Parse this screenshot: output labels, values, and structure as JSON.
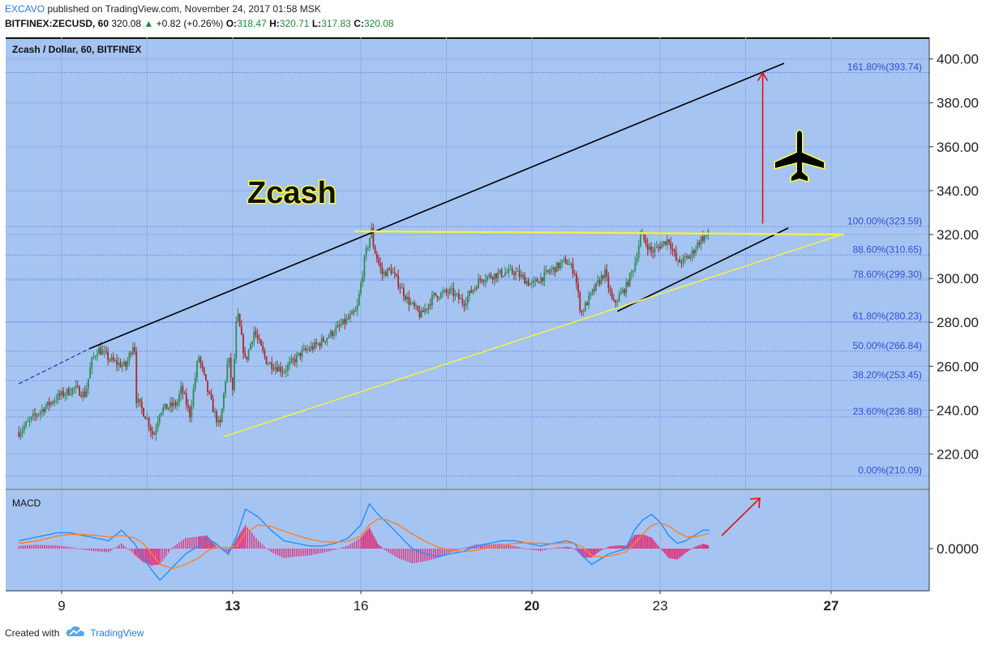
{
  "header": {
    "author": "EXCAVO",
    "published_text": " published on TradingView.com, November 24, 2017 01:58 MSK",
    "symbol": "BITFINEX:ZECUSD, 60",
    "last": "320.08",
    "change_arrow": "▲",
    "change": "+0.82 (+0.26%)",
    "o_label": "O:",
    "o_value": "318.47",
    "h_label": "H:",
    "h_value": "320.71",
    "l_label": "L:",
    "l_value": "317.83",
    "c_label": "C:",
    "c_value": "320.08"
  },
  "footer": {
    "created_with": "Created with",
    "brand": "TradingView",
    "icon": "tradingview-cloud-icon"
  },
  "colors": {
    "background": "#a6c4f2",
    "grid": "#8db0e6",
    "candle_up": "#2e8b57",
    "candle_down": "#a52a2a",
    "fib_line": "#4b68e0",
    "fib_text": "#2f4fd6",
    "channel": "#000000",
    "trendline": "#f0f04a",
    "target_arrow": "#e01010",
    "macd_line": "#1e90ff",
    "signal_line": "#ff7f27",
    "histogram": "#e0307a"
  },
  "chart_data": [
    {
      "type": "candlestick",
      "title": "Zcash / Dollar, 60, BITFINEX",
      "annotation_text": "Zcash",
      "icons": [
        "airplane-icon"
      ],
      "x_ticks": [
        "9",
        "13",
        "16",
        "20",
        "23",
        "27"
      ],
      "y_ticks": [
        "220.00",
        "240.00",
        "260.00",
        "280.00",
        "300.00",
        "320.00",
        "340.00",
        "360.00",
        "380.00",
        "400.00"
      ],
      "ylim": [
        203,
        409
      ],
      "last_price": 320.08,
      "fibonacci": [
        {
          "label": "0.00%(210.09)",
          "value": 210.09
        },
        {
          "label": "23.60%(236.88)",
          "value": 236.88
        },
        {
          "label": "38.20%(253.45)",
          "value": 253.45
        },
        {
          "label": "50.00%(266.84)",
          "value": 266.84
        },
        {
          "label": "61.80%(280.23)",
          "value": 280.23
        },
        {
          "label": "78.60%(299.30)",
          "value": 299.3
        },
        {
          "label": "88.60%(310.65)",
          "value": 310.65
        },
        {
          "label": "100.00%(323.59)",
          "value": 323.59
        },
        {
          "label": "161.80%(393.74)",
          "value": 393.74
        }
      ],
      "price_path": [
        {
          "d": 8.0,
          "p": 230
        },
        {
          "d": 8.4,
          "p": 238
        },
        {
          "d": 8.9,
          "p": 246
        },
        {
          "d": 9.3,
          "p": 250
        },
        {
          "d": 9.55,
          "p": 247
        },
        {
          "d": 9.7,
          "p": 262
        },
        {
          "d": 9.85,
          "p": 268
        },
        {
          "d": 10.2,
          "p": 262
        },
        {
          "d": 10.5,
          "p": 260
        },
        {
          "d": 10.7,
          "p": 272
        },
        {
          "d": 10.75,
          "p": 245
        },
        {
          "d": 11.0,
          "p": 236
        },
        {
          "d": 11.15,
          "p": 228
        },
        {
          "d": 11.3,
          "p": 240
        },
        {
          "d": 11.7,
          "p": 243
        },
        {
          "d": 11.8,
          "p": 250
        },
        {
          "d": 12.0,
          "p": 238
        },
        {
          "d": 12.2,
          "p": 265
        },
        {
          "d": 12.4,
          "p": 250
        },
        {
          "d": 12.55,
          "p": 240
        },
        {
          "d": 12.7,
          "p": 232
        },
        {
          "d": 12.9,
          "p": 265
        },
        {
          "d": 13.0,
          "p": 248
        },
        {
          "d": 13.1,
          "p": 285
        },
        {
          "d": 13.3,
          "p": 262
        },
        {
          "d": 13.5,
          "p": 276
        },
        {
          "d": 13.8,
          "p": 262
        },
        {
          "d": 14.2,
          "p": 258
        },
        {
          "d": 14.6,
          "p": 266
        },
        {
          "d": 15.0,
          "p": 270
        },
        {
          "d": 15.5,
          "p": 278
        },
        {
          "d": 15.9,
          "p": 285
        },
        {
          "d": 16.1,
          "p": 310
        },
        {
          "d": 16.25,
          "p": 322
        },
        {
          "d": 16.3,
          "p": 314
        },
        {
          "d": 16.5,
          "p": 302
        },
        {
          "d": 16.7,
          "p": 304
        },
        {
          "d": 17.1,
          "p": 290
        },
        {
          "d": 17.4,
          "p": 283
        },
        {
          "d": 17.7,
          "p": 292
        },
        {
          "d": 18.1,
          "p": 294
        },
        {
          "d": 18.4,
          "p": 289
        },
        {
          "d": 18.8,
          "p": 300
        },
        {
          "d": 19.2,
          "p": 302
        },
        {
          "d": 19.6,
          "p": 303
        },
        {
          "d": 20.0,
          "p": 297
        },
        {
          "d": 20.4,
          "p": 303
        },
        {
          "d": 20.8,
          "p": 308
        },
        {
          "d": 21.0,
          "p": 303
        },
        {
          "d": 21.15,
          "p": 284
        },
        {
          "d": 21.4,
          "p": 293
        },
        {
          "d": 21.7,
          "p": 303
        },
        {
          "d": 21.9,
          "p": 288
        },
        {
          "d": 22.2,
          "p": 296
        },
        {
          "d": 22.4,
          "p": 306
        },
        {
          "d": 22.55,
          "p": 320
        },
        {
          "d": 22.8,
          "p": 312
        },
        {
          "d": 23.2,
          "p": 318
        },
        {
          "d": 23.4,
          "p": 307
        },
        {
          "d": 23.7,
          "p": 310
        },
        {
          "d": 23.95,
          "p": 318
        },
        {
          "d": 24.15,
          "p": 320.08
        }
      ],
      "trendlines": [
        {
          "name": "upper-channel",
          "from": {
            "d": 9.65,
            "p": 268
          },
          "to": {
            "d": 25.9,
            "p": 398
          }
        },
        {
          "name": "upper-channel-extension-dashed",
          "from": {
            "d": 8.0,
            "p": 252
          },
          "to": {
            "d": 9.65,
            "p": 268
          }
        },
        {
          "name": "lower-wedge-support",
          "from": {
            "d": 22.0,
            "p": 285
          },
          "to": {
            "d": 26.0,
            "p": 323
          }
        },
        {
          "name": "rising-support",
          "from": {
            "d": 12.8,
            "p": 228
          },
          "to": {
            "d": 27.25,
            "p": 320
          }
        },
        {
          "name": "resistance",
          "from": {
            "d": 15.85,
            "p": 321.5
          },
          "to": {
            "d": 27.3,
            "p": 320
          }
        }
      ],
      "target_arrow": {
        "d": 25.4,
        "from": 325,
        "to": 393.74
      }
    },
    {
      "type": "line",
      "title": "MACD",
      "y_ticks": [
        "0.0000"
      ],
      "ylim": [
        -6,
        9
      ],
      "x": [
        8.0,
        8.3,
        8.6,
        8.9,
        9.2,
        9.5,
        9.8,
        10.1,
        10.4,
        10.7,
        10.9,
        11.1,
        11.3,
        11.6,
        11.9,
        12.2,
        12.4,
        12.6,
        12.9,
        13.1,
        13.3,
        13.6,
        13.9,
        14.2,
        14.5,
        14.8,
        15.1,
        15.4,
        15.7,
        16.0,
        16.2,
        16.4,
        16.6,
        16.9,
        17.2,
        17.5,
        17.8,
        18.1,
        18.4,
        18.7,
        19.0,
        19.3,
        19.6,
        19.9,
        20.2,
        20.5,
        20.8,
        21.0,
        21.2,
        21.4,
        21.6,
        21.8,
        22.0,
        22.2,
        22.4,
        22.6,
        22.8,
        23.0,
        23.2,
        23.4,
        23.6,
        23.8,
        24.0,
        24.15
      ],
      "series": [
        {
          "name": "MACD",
          "values": [
            1.5,
            2.0,
            2.5,
            3.0,
            3.0,
            2.5,
            2.0,
            1.5,
            3.5,
            1.0,
            -1.5,
            -4.0,
            -6.0,
            -3.5,
            -1.0,
            0.5,
            2.0,
            1.0,
            -1.0,
            2.5,
            7.5,
            6.0,
            3.5,
            1.5,
            1.0,
            0.5,
            0.5,
            1.0,
            2.0,
            4.5,
            8.5,
            6.5,
            5.0,
            2.5,
            0.0,
            -1.0,
            -1.5,
            -1.0,
            -0.5,
            0.5,
            1.0,
            1.5,
            1.5,
            1.0,
            0.5,
            1.0,
            1.5,
            1.0,
            -1.5,
            -3.0,
            -2.0,
            -1.0,
            -0.5,
            0.0,
            3.5,
            5.5,
            6.5,
            5.0,
            2.5,
            1.0,
            1.5,
            2.5,
            3.5,
            3.5
          ]
        },
        {
          "name": "Signal",
          "values": [
            1.0,
            1.3,
            1.8,
            2.4,
            2.7,
            2.7,
            2.5,
            2.2,
            2.5,
            2.1,
            1.0,
            -0.8,
            -3.0,
            -3.8,
            -3.0,
            -1.8,
            -0.5,
            0.3,
            0.2,
            0.5,
            3.0,
            4.5,
            4.2,
            3.3,
            2.5,
            1.8,
            1.3,
            1.2,
            1.4,
            2.4,
            4.5,
            5.6,
            5.5,
            4.4,
            2.8,
            1.4,
            0.3,
            -0.3,
            -0.6,
            -0.3,
            0.2,
            0.6,
            1.0,
            1.1,
            1.0,
            0.9,
            1.1,
            1.0,
            0.2,
            -1.3,
            -1.6,
            -1.4,
            -1.1,
            -0.6,
            0.9,
            2.8,
            4.4,
            4.9,
            4.3,
            3.1,
            2.3,
            2.2,
            2.6,
            2.9
          ]
        }
      ],
      "histogram": [
        0.5,
        0.7,
        0.7,
        0.6,
        0.3,
        -0.2,
        -0.5,
        -0.7,
        1.0,
        -1.1,
        -2.5,
        -3.2,
        -3.0,
        0.3,
        2.0,
        2.3,
        2.5,
        0.7,
        -1.2,
        2.0,
        4.5,
        1.5,
        -0.7,
        -1.8,
        -1.5,
        -1.3,
        -0.8,
        -0.2,
        0.6,
        2.1,
        4.0,
        0.9,
        -0.5,
        -1.9,
        -2.8,
        -2.4,
        -1.8,
        -0.7,
        0.1,
        0.8,
        0.8,
        0.9,
        0.5,
        -0.1,
        -0.5,
        0.1,
        0.4,
        0.0,
        -1.7,
        -1.7,
        -0.4,
        0.4,
        0.6,
        0.6,
        2.6,
        2.7,
        2.1,
        0.1,
        -1.8,
        -2.1,
        -0.8,
        0.3,
        0.9,
        0.6
      ],
      "annotations": [
        "rising-arrow"
      ]
    }
  ]
}
